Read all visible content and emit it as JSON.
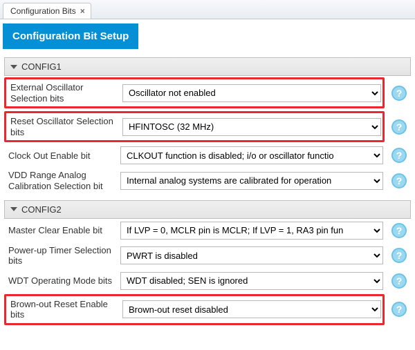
{
  "tab": {
    "title": "Configuration Bits",
    "close_glyph": "×"
  },
  "banner": {
    "title": "Configuration Bit Setup"
  },
  "sections": {
    "config1": {
      "title": "CONFIG1",
      "rows": {
        "ext_osc": {
          "label": "External Oscillator Selection bits",
          "value": "Oscillator not enabled",
          "highlight": true
        },
        "reset_osc": {
          "label": "Reset Oscillator Selection bits",
          "value": "HFINTOSC (32 MHz)",
          "highlight": true
        },
        "clkout": {
          "label": "Clock Out Enable bit",
          "value": "CLKOUT function is disabled; i/o or oscillator functio",
          "highlight": false
        },
        "vdd": {
          "label": "VDD Range Analog Calibration Selection bit",
          "value": "Internal analog systems are calibrated for operation",
          "highlight": false
        }
      }
    },
    "config2": {
      "title": "CONFIG2",
      "rows": {
        "mclr": {
          "label": "Master Clear Enable bit",
          "value": "If LVP = 0, MCLR pin is MCLR; If LVP = 1, RA3 pin fun",
          "highlight": false
        },
        "pwrt": {
          "label": "Power-up Timer Selection bits",
          "value": "PWRT is disabled",
          "highlight": false
        },
        "wdt": {
          "label": "WDT Operating Mode bits",
          "value": "WDT disabled; SEN is ignored",
          "highlight": false
        },
        "bor": {
          "label": "Brown-out Reset Enable bits",
          "value": "Brown-out reset disabled",
          "highlight": true
        }
      }
    }
  },
  "help_glyph": "?",
  "colors": {
    "accent": "#0590d6",
    "highlight_border": "#e8272f",
    "help_bg": "#9cd8f0"
  }
}
